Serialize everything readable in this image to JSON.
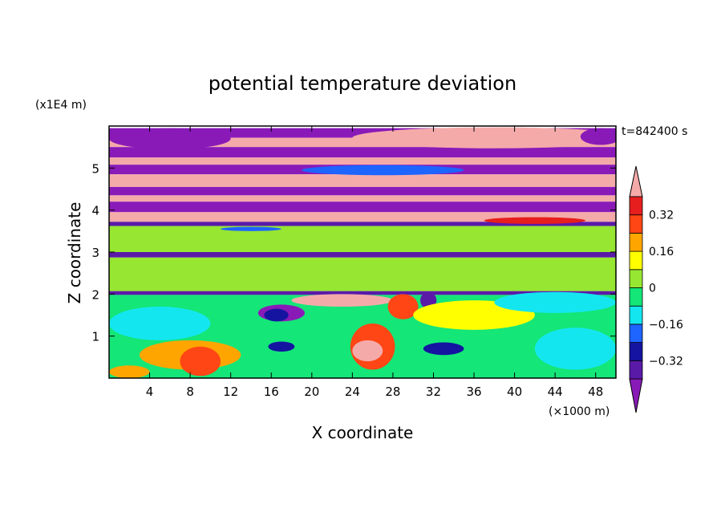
{
  "chart_data": {
    "type": "heatmap",
    "title": "potential temperature deviation",
    "xlabel": "X coordinate",
    "ylabel": "Z coordinate",
    "x_unit": "(×1000 m)",
    "y_unit": "(x1E4 m)",
    "time_label": "t=842400 s",
    "xlim": [
      0,
      50
    ],
    "ylim": [
      0,
      6
    ],
    "x_ticks": [
      4,
      8,
      12,
      16,
      20,
      24,
      28,
      32,
      36,
      40,
      44,
      48
    ],
    "y_ticks": [
      1,
      2,
      3,
      4,
      5
    ],
    "colorbar": {
      "levels": [
        -0.4,
        -0.32,
        -0.24,
        -0.16,
        -0.08,
        0,
        0.08,
        0.16,
        0.24,
        0.32,
        0.4
      ],
      "labeled_levels": [
        0.32,
        0.16,
        0,
        -0.16,
        -0.32
      ],
      "label_text": [
        "0.32",
        "0.16",
        "0",
        "−0.16",
        "−0.32"
      ],
      "colors": [
        "#8a1ab8",
        "#5a1aa8",
        "#1414a0",
        "#1e64ff",
        "#14e6f0",
        "#14e678",
        "#96e632",
        "#ffff00",
        "#ffa500",
        "#ff4614",
        "#e61e1e",
        "#f5aaaa"
      ]
    },
    "bands": [
      {
        "z": [
          5.72,
          5.95
        ],
        "value": -0.45
      },
      {
        "z": [
          5.5,
          5.72
        ],
        "value": 0.45
      },
      {
        "z": [
          5.25,
          5.5
        ],
        "value": -0.45
      },
      {
        "z": [
          5.08,
          5.25
        ],
        "value": 0.45
      },
      {
        "z": [
          4.85,
          5.08
        ],
        "value": -0.45
      },
      {
        "z": [
          4.55,
          4.85
        ],
        "value": 0.45
      },
      {
        "z": [
          4.35,
          4.55
        ],
        "value": -0.45
      },
      {
        "z": [
          4.2,
          4.35
        ],
        "value": 0.45
      },
      {
        "z": [
          3.95,
          4.2
        ],
        "value": -0.45
      },
      {
        "z": [
          3.72,
          3.95
        ],
        "value": 0.45
      },
      {
        "z": [
          3.62,
          3.72
        ],
        "value": -0.34
      },
      {
        "z": [
          3.0,
          3.62
        ],
        "value": 0.04
      },
      {
        "z": [
          2.87,
          3.0
        ],
        "value": -0.38
      },
      {
        "z": [
          2.07,
          2.87
        ],
        "value": 0.05
      },
      {
        "z": [
          1.98,
          2.07
        ],
        "value": -0.36
      },
      {
        "z": [
          0.0,
          1.98
        ],
        "value": -0.06
      }
    ],
    "blobs": [
      {
        "x": 6,
        "z": 5.7,
        "rx": 6,
        "rz": 0.25,
        "value": -0.45
      },
      {
        "x": 38,
        "z": 5.72,
        "rx": 14,
        "rz": 0.25,
        "value": 0.45
      },
      {
        "x": 48.5,
        "z": 5.75,
        "rx": 2,
        "rz": 0.2,
        "value": -0.45
      },
      {
        "x": 27,
        "z": 4.95,
        "rx": 8,
        "rz": 0.12,
        "value": -0.2
      },
      {
        "x": 42,
        "z": 3.75,
        "rx": 5,
        "rz": 0.08,
        "value": 0.38
      },
      {
        "x": 14,
        "z": 3.55,
        "rx": 3,
        "rz": 0.05,
        "value": -0.2
      },
      {
        "x": 23,
        "z": 1.85,
        "rx": 5,
        "rz": 0.15,
        "value": 0.45
      },
      {
        "x": 17,
        "z": 1.55,
        "rx": 2.3,
        "rz": 0.2,
        "value": -0.42
      },
      {
        "x": 16.5,
        "z": 1.5,
        "rx": 1.2,
        "rz": 0.15,
        "value": -0.3
      },
      {
        "x": 26,
        "z": 0.75,
        "rx": 2.2,
        "rz": 0.55,
        "value": 0.28
      },
      {
        "x": 25.5,
        "z": 0.65,
        "rx": 1.5,
        "rz": 0.25,
        "value": 0.45
      },
      {
        "x": 29,
        "z": 1.7,
        "rx": 1.5,
        "rz": 0.3,
        "value": 0.3
      },
      {
        "x": 31.5,
        "z": 1.85,
        "rx": 0.8,
        "rz": 0.2,
        "value": -0.4
      },
      {
        "x": 8,
        "z": 0.55,
        "rx": 5,
        "rz": 0.35,
        "value": 0.2
      },
      {
        "x": 9,
        "z": 0.4,
        "rx": 2,
        "rz": 0.35,
        "value": 0.25
      },
      {
        "x": 5,
        "z": 1.3,
        "rx": 5,
        "rz": 0.4,
        "value": -0.1
      },
      {
        "x": 17,
        "z": 0.75,
        "rx": 1.3,
        "rz": 0.12,
        "value": -0.3
      },
      {
        "x": 33,
        "z": 0.7,
        "rx": 2,
        "rz": 0.15,
        "value": -0.25
      },
      {
        "x": 46,
        "z": 0.7,
        "rx": 4,
        "rz": 0.5,
        "value": -0.1
      },
      {
        "x": 36,
        "z": 1.5,
        "rx": 6,
        "rz": 0.35,
        "value": 0.12
      },
      {
        "x": 44,
        "z": 1.8,
        "rx": 6,
        "rz": 0.25,
        "value": -0.1
      },
      {
        "x": 2,
        "z": 0.15,
        "rx": 2,
        "rz": 0.15,
        "value": 0.2
      }
    ]
  }
}
